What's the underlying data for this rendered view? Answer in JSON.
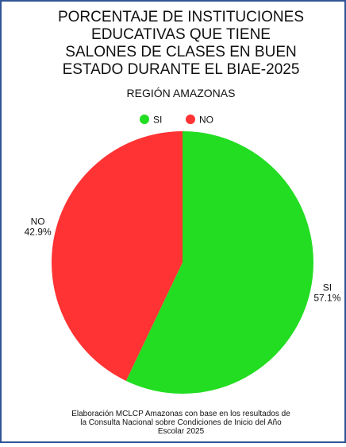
{
  "chart_data": {
    "type": "pie",
    "title": [
      "PORCENTAJE DE INSTITUCIONES",
      "EDUCATIVAS QUE TIENE",
      "SALONES DE CLASES EN BUEN",
      "ESTADO DURANTE EL BIAE-2025"
    ],
    "subtitle": "REGIÓN AMAZONAS",
    "categories": [
      "SI",
      "NO"
    ],
    "values": [
      57.1,
      42.9
    ],
    "value_labels": [
      "57.1%",
      "42.9%"
    ],
    "colors": [
      "#22dd22",
      "#ff3333"
    ],
    "legend": "top",
    "note": [
      "Elaboración MCLCP Amazonas con base en los resultados de",
      "la Consulta Nacional sobre Condiciones de Inicio del Año",
      "Escolar 2025"
    ]
  }
}
